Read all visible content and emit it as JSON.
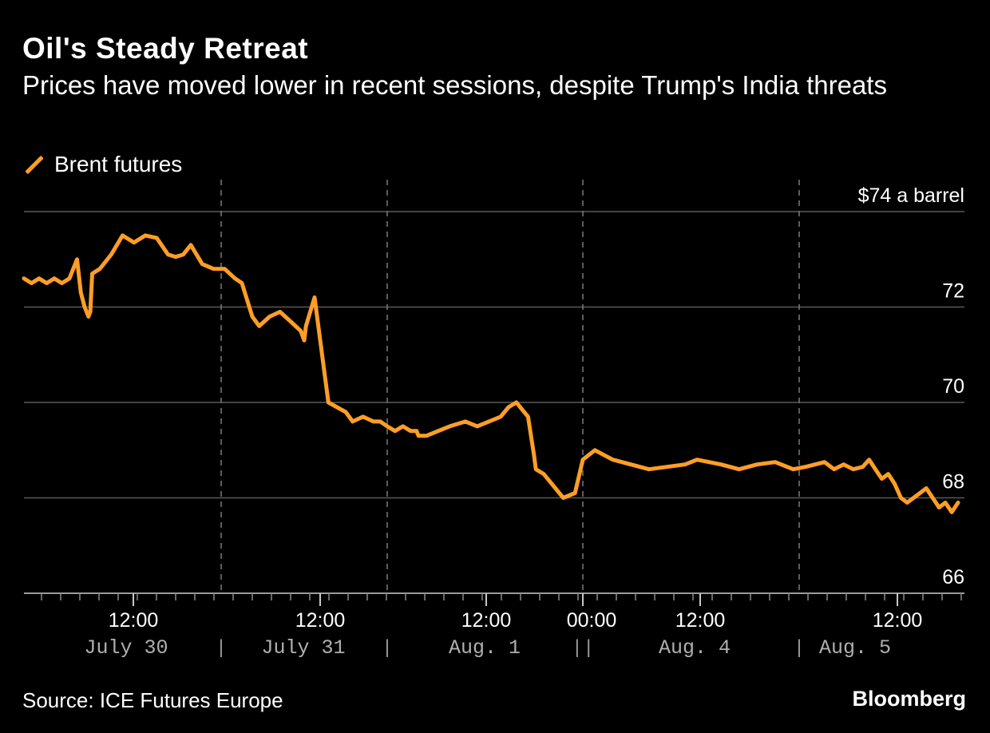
{
  "title": "Oil's Steady Retreat",
  "subtitle": "Prices have moved lower in recent sessions, despite Trump's India threats",
  "legend": {
    "label": "Brent futures",
    "color": "#ff9e27"
  },
  "source": "Source: ICE Futures Europe",
  "brand": "Bloomberg",
  "chart_data": {
    "type": "line",
    "title": "Oil's Steady Retreat",
    "subtitle": "Prices have moved lower in recent sessions, despite Trump's India threats",
    "ylabel": "$74 a barrel",
    "ylim": [
      66,
      74
    ],
    "y_ticks": [
      {
        "value": 74,
        "label": "$74 a barrel"
      },
      {
        "value": 72,
        "label": "72"
      },
      {
        "value": 70,
        "label": "70"
      },
      {
        "value": 68,
        "label": "68"
      },
      {
        "value": 66,
        "label": "66"
      }
    ],
    "sessions": [
      {
        "label": "July 30",
        "time_label": "12:00"
      },
      {
        "label": "July 31",
        "time_label": "12:00"
      },
      {
        "label": "Aug. 1",
        "time_label": "12:00"
      },
      {
        "label": "Aug. 4",
        "time_label": "12:00",
        "lead_time_label": "00:00"
      },
      {
        "label": "Aug. 5",
        "time_label": "12:00"
      }
    ],
    "grid": true,
    "legend_position": "top-left",
    "series": [
      {
        "name": "Brent futures",
        "color": "#ff9e27",
        "x": [
          0,
          0.2,
          0.4,
          0.6,
          0.8,
          1.0,
          1.2,
          1.4,
          1.5,
          1.6,
          1.7,
          1.75,
          1.8,
          2.0,
          2.3,
          2.6,
          2.9,
          3.2,
          3.5,
          3.8,
          4.0,
          4.2,
          4.4,
          4.7,
          5.0,
          5.3,
          5.6,
          5.8,
          6.1,
          6.3,
          6.6,
          6.9,
          7.2,
          7.5,
          7.6,
          7.65,
          7.9,
          8.3,
          8.8,
          9.0,
          9.3,
          9.6,
          9.8,
          10.0,
          10.2,
          10.4,
          10.6,
          10.75,
          10.8,
          11.0,
          11.3,
          11.6,
          12.0,
          12.3,
          12.6,
          12.9,
          13.1,
          13.3,
          13.6,
          13.75,
          13.8,
          14.0,
          14.2,
          14.5,
          14.8,
          15.0,
          15.2,
          15.5,
          15.8,
          16.1,
          16.4,
          16.7,
          16.9,
          17.1,
          17.3,
          17.6,
          17.9,
          18.2,
          18.5,
          18.8,
          19.1,
          19.4,
          19.7,
          20.0,
          20.3,
          20.6,
          20.8,
          21.0,
          21.2,
          21.4,
          21.6,
          21.8,
          22.0,
          22.2,
          22.4,
          22.6,
          22.8,
          23.0,
          23.2,
          23.4,
          23.6
        ],
        "y": [
          72.6,
          72.5,
          72.6,
          72.5,
          72.6,
          72.5,
          72.6,
          73.0,
          72.3,
          72.0,
          71.8,
          71.9,
          72.7,
          72.8,
          73.1,
          73.5,
          73.35,
          73.5,
          73.45,
          73.1,
          73.05,
          73.1,
          73.3,
          72.9,
          72.8,
          72.8,
          72.6,
          72.5,
          71.8,
          71.6,
          71.8,
          71.9,
          71.7,
          71.5,
          71.3,
          71.6,
          72.2,
          70.0,
          69.8,
          69.6,
          69.7,
          69.6,
          69.6,
          69.5,
          69.4,
          69.5,
          69.4,
          69.4,
          69.3,
          69.3,
          69.4,
          69.5,
          69.6,
          69.5,
          69.6,
          69.7,
          69.9,
          70.0,
          69.7,
          68.9,
          68.6,
          68.5,
          68.3,
          68.0,
          68.1,
          68.8,
          69.0,
          68.8,
          68.7,
          68.6,
          68.65,
          68.7,
          68.8,
          68.75,
          68.7,
          68.6,
          68.7,
          68.75,
          68.6,
          68.65,
          68.7,
          68.75,
          68.6,
          68.7,
          68.6,
          68.65,
          68.8,
          68.6,
          68.4,
          68.5,
          68.3,
          68.0,
          67.9,
          68.0,
          68.1,
          68.2,
          68.0,
          67.8,
          67.9,
          67.7,
          67.9
        ]
      }
    ],
    "x_session_bounds": [
      0,
      5.2,
      10.0,
      15.0,
      18.6,
      23.8
    ]
  }
}
